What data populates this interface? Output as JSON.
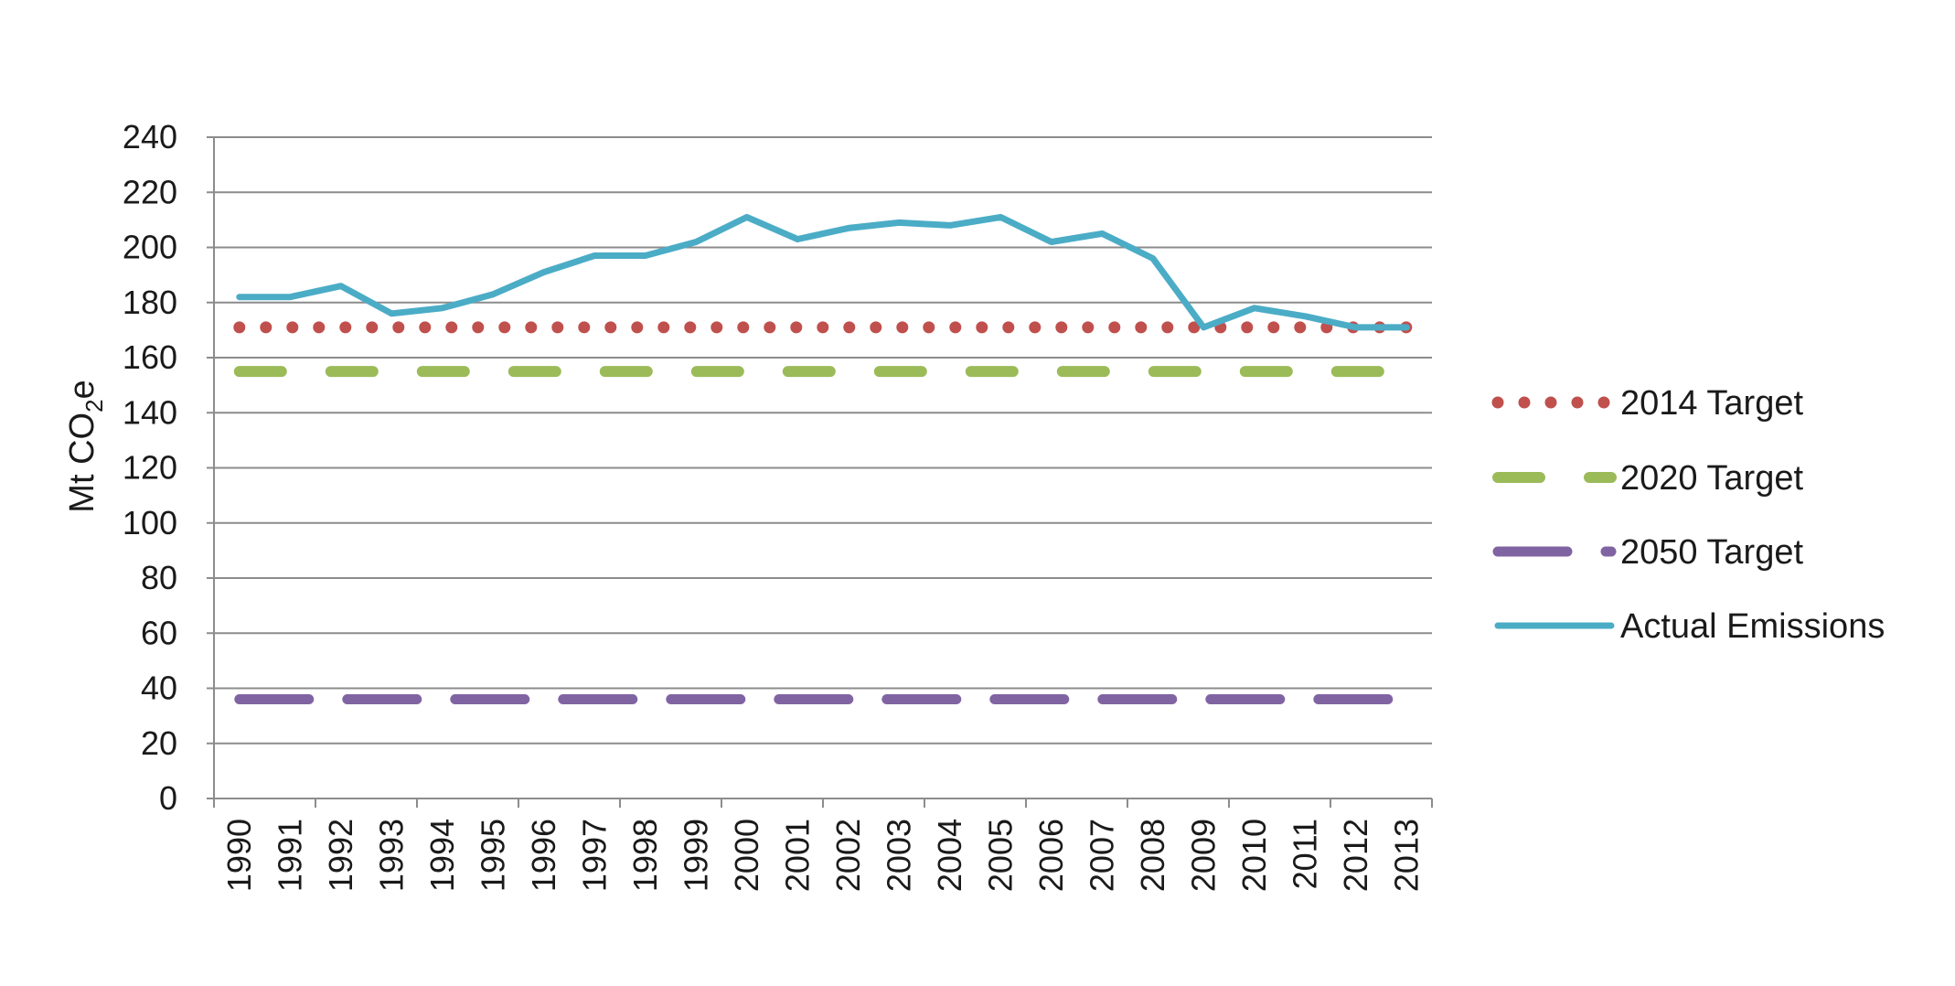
{
  "chart_data": {
    "type": "line",
    "ylabel": {
      "main": "Mt CO",
      "sub": "2",
      "tail": "e"
    },
    "ylim": [
      0,
      240
    ],
    "yticks": [
      0,
      20,
      40,
      60,
      80,
      100,
      120,
      140,
      160,
      180,
      200,
      220,
      240
    ],
    "grid": true,
    "legend_position": "right",
    "categories": [
      "1990",
      "1991",
      "1992",
      "1993",
      "1994",
      "1995",
      "1996",
      "1997",
      "1998",
      "1999",
      "2000",
      "2001",
      "2002",
      "2003",
      "2004",
      "2005",
      "2006",
      "2007",
      "2008",
      "2009",
      "2010",
      "2011",
      "2012",
      "2013"
    ],
    "series": [
      {
        "name": "2014 Target",
        "style": "dotted",
        "color": "#c0504d",
        "values": [
          171,
          171,
          171,
          171,
          171,
          171,
          171,
          171,
          171,
          171,
          171,
          171,
          171,
          171,
          171,
          171,
          171,
          171,
          171,
          171,
          171,
          171,
          171,
          171
        ]
      },
      {
        "name": "2020 Target",
        "style": "dashed",
        "color": "#9bbb59",
        "values": [
          155,
          155,
          155,
          155,
          155,
          155,
          155,
          155,
          155,
          155,
          155,
          155,
          155,
          155,
          155,
          155,
          155,
          155,
          155,
          155,
          155,
          155,
          155,
          155
        ]
      },
      {
        "name": "2050 Target",
        "style": "long-dash",
        "color": "#8064a2",
        "values": [
          36,
          36,
          36,
          36,
          36,
          36,
          36,
          36,
          36,
          36,
          36,
          36,
          36,
          36,
          36,
          36,
          36,
          36,
          36,
          36,
          36,
          36,
          36,
          36
        ]
      },
      {
        "name": "Actual Emissions",
        "style": "solid",
        "color": "#4bacc6",
        "values": [
          182,
          182,
          186,
          176,
          178,
          183,
          191,
          197,
          197,
          202,
          211,
          203,
          207,
          209,
          208,
          211,
          202,
          205,
          196,
          171,
          178,
          175,
          171,
          171
        ]
      }
    ]
  }
}
